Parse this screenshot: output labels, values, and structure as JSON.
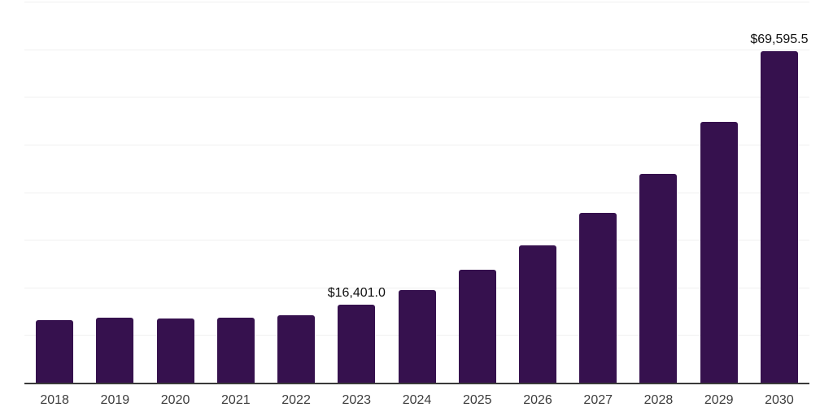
{
  "colors": {
    "bar": "#36114E",
    "gridline": "#f0f0f0",
    "axis": "#3a3a3a",
    "tick_label": "#3d3d3d",
    "value_label": "#111111",
    "background": "#ffffff"
  },
  "chart_data": {
    "type": "bar",
    "categories": [
      "2018",
      "2019",
      "2020",
      "2021",
      "2022",
      "2023",
      "2024",
      "2025",
      "2026",
      "2027",
      "2028",
      "2029",
      "2030"
    ],
    "values": [
      13200,
      13700,
      13450,
      13650,
      14230,
      16401.0,
      19500,
      23650,
      28750,
      35600,
      43900,
      54800,
      69595.5
    ],
    "bar_labels": {
      "2023": "$16,401.0",
      "2030": "$69,595.5"
    },
    "ylim": [
      0,
      80000
    ],
    "gridline_interval": 10000,
    "grid": "horizontal",
    "y_axis_tick_labels": "none",
    "legend": "none",
    "bar_color_name": "dark-purple"
  }
}
